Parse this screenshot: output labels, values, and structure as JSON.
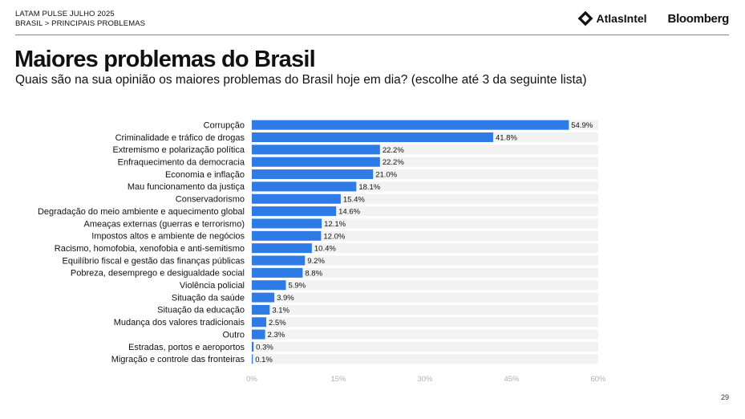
{
  "header": {
    "line1": "LATAM PULSE JULHO 2025",
    "line2": "BRASIL > PRINCIPAIS PROBLEMAS"
  },
  "logos": {
    "atlas": "AtlasIntel",
    "bloomberg": "Bloomberg"
  },
  "title": "Maiores problemas do Brasil",
  "subtitle": "Quais são na sua opinião os maiores problemas do Brasil hoje em dia? (escolhe até 3 da seguinte lista)",
  "page_number": "29",
  "colors": {
    "bar": "#2f7be6",
    "row_band": "#f2f2f2",
    "tick_label": "#b0b0b0"
  },
  "chart_data": {
    "type": "bar",
    "orientation": "horizontal",
    "categories": [
      "Corrupção",
      "Criminalidade e tráfico de drogas",
      "Extremismo e polarização política",
      "Enfraquecimento da democracia",
      "Economia e inflação",
      "Mau funcionamento da justiça",
      "Conservadorismo",
      "Degradação do meio ambiente e aquecimento global",
      "Ameaças externas (guerras e terrorismo)",
      "Impostos altos e ambiente de negócios",
      "Racismo, homofobia, xenofobia e anti-semitismo",
      "Equilíbrio fiscal e gestão das finanças públicas",
      "Pobreza, desemprego e desigualdade social",
      "Violência policial",
      "Situação da saúde",
      "Situação da educação",
      "Mudança dos valores tradicionais",
      "Outro",
      "Estradas, portos e aeroportos",
      "Migração e controle das fronteiras"
    ],
    "values": [
      54.9,
      41.8,
      22.2,
      22.2,
      21.0,
      18.1,
      15.4,
      14.6,
      12.1,
      12.0,
      10.4,
      9.2,
      8.8,
      5.9,
      3.9,
      3.1,
      2.5,
      2.3,
      0.3,
      0.1
    ],
    "data_labels": [
      "54.9%",
      "41.8%",
      "22.2%",
      "22.2%",
      "21.0%",
      "18.1%",
      "15.4%",
      "14.6%",
      "12.1%",
      "12.0%",
      "10.4%",
      "9.2%",
      "8.8%",
      "5.9%",
      "3.9%",
      "3.1%",
      "2.5%",
      "2.3%",
      "0.3%",
      "0.1%"
    ],
    "xlim": [
      0,
      60
    ],
    "x_ticks": [
      "0%",
      "15%",
      "30%",
      "45%",
      "60%"
    ],
    "grid": false
  }
}
